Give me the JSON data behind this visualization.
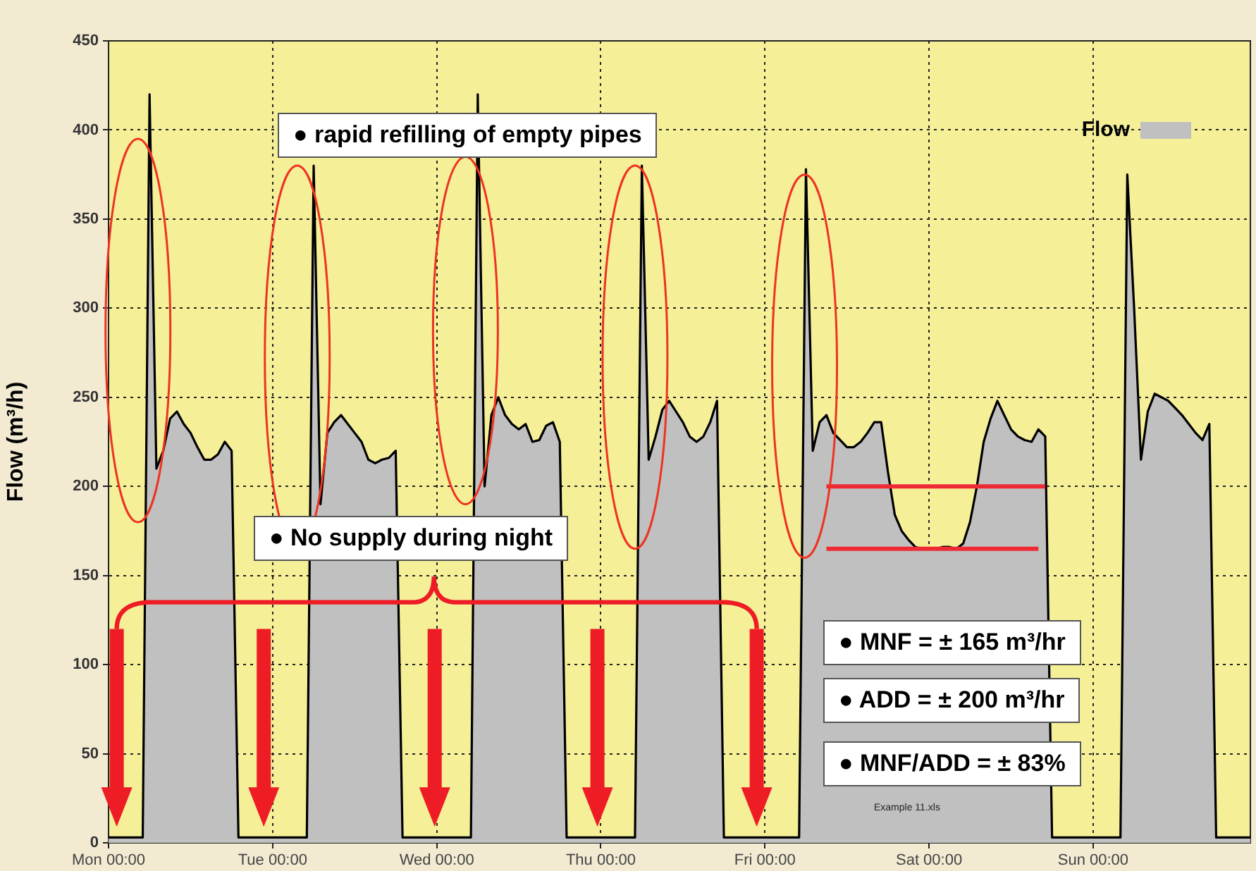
{
  "chart_data": {
    "type": "area",
    "ylabel": "Flow (m³/h)",
    "categories": [
      "Mon 00:00",
      null,
      null,
      null,
      null,
      null,
      null,
      null,
      null,
      null,
      null,
      null,
      null,
      null,
      null,
      null,
      null,
      null,
      null,
      null,
      null,
      null,
      null,
      null,
      "Tue 00:00",
      null,
      null,
      null,
      null,
      null,
      null,
      null,
      null,
      null,
      null,
      null,
      null,
      null,
      null,
      null,
      null,
      null,
      null,
      null,
      null,
      null,
      null,
      null,
      "Wed 00:00",
      null,
      null,
      null,
      null,
      null,
      null,
      null,
      null,
      null,
      null,
      null,
      null,
      null,
      null,
      null,
      null,
      null,
      null,
      null,
      null,
      null,
      null,
      null,
      "Thu 00:00",
      null,
      null,
      null,
      null,
      null,
      null,
      null,
      null,
      null,
      null,
      null,
      null,
      null,
      null,
      null,
      null,
      null,
      null,
      null,
      null,
      null,
      null,
      null,
      "Fri 00:00",
      null,
      null,
      null,
      null,
      null,
      null,
      null,
      null,
      null,
      null,
      null,
      null,
      null,
      null,
      null,
      null,
      null,
      null,
      null,
      null,
      null,
      null,
      null,
      "Sat 00:00",
      null,
      null,
      null,
      null,
      null,
      null,
      null,
      null,
      null,
      null,
      null,
      null,
      null,
      null,
      null,
      null,
      null,
      null,
      null,
      null,
      null,
      null,
      null,
      "Sun 00:00",
      null,
      null,
      null,
      null,
      null,
      null,
      null,
      null,
      null,
      null,
      null,
      null,
      null,
      null,
      null,
      null,
      null,
      null,
      null,
      null,
      null,
      null,
      null
    ],
    "ylim": [
      0,
      450
    ],
    "yticks": [
      0,
      50,
      100,
      150,
      200,
      250,
      300,
      350,
      400,
      450
    ],
    "grid": true,
    "legend": "top right",
    "marker": "none",
    "series": [
      {
        "name": "Flow",
        "color": "#c0c0c0",
        "values": [
          3,
          3,
          3,
          3,
          3,
          3,
          420,
          210,
          220,
          238,
          242,
          235,
          230,
          222,
          215,
          215,
          218,
          225,
          220,
          3,
          3,
          3,
          3,
          3,
          3,
          3,
          3,
          3,
          3,
          3,
          380,
          190,
          230,
          236,
          240,
          235,
          230,
          225,
          215,
          213,
          215,
          216,
          220,
          3,
          3,
          3,
          3,
          3,
          3,
          3,
          3,
          3,
          3,
          3,
          420,
          200,
          240,
          250,
          240,
          235,
          232,
          235,
          225,
          226,
          234,
          236,
          225,
          3,
          3,
          3,
          3,
          3,
          3,
          3,
          3,
          3,
          3,
          3,
          380,
          215,
          228,
          243,
          248,
          242,
          236,
          228,
          225,
          228,
          236,
          248,
          3,
          3,
          3,
          3,
          3,
          3,
          3,
          3,
          3,
          3,
          3,
          3,
          378,
          220,
          236,
          240,
          230,
          226,
          222,
          222,
          225,
          230,
          236,
          236,
          208,
          184,
          175,
          170,
          166,
          165,
          165,
          165,
          166,
          166,
          165,
          168,
          180,
          200,
          225,
          238,
          248,
          240,
          232,
          228,
          226,
          225,
          232,
          228,
          3,
          3,
          3,
          3,
          3,
          3,
          3,
          3,
          3,
          3,
          3,
          375,
          300,
          215,
          242,
          252,
          250,
          248,
          244,
          240,
          235,
          230,
          226,
          235,
          3,
          3,
          3,
          3,
          3,
          3
        ]
      },
      {
        "type": "line",
        "color": "#ee2a35",
        "values": [
          null,
          null,
          null,
          null,
          null,
          null,
          null,
          null,
          null,
          null,
          null,
          null,
          null,
          null,
          null,
          null,
          null,
          null,
          null,
          null,
          null,
          null,
          null,
          null,
          null,
          null,
          null,
          null,
          null,
          null,
          null,
          null,
          null,
          null,
          null,
          null,
          null,
          null,
          null,
          null,
          null,
          null,
          null,
          null,
          null,
          null,
          null,
          null,
          null,
          null,
          null,
          null,
          null,
          null,
          null,
          null,
          null,
          null,
          null,
          null,
          null,
          null,
          null,
          null,
          null,
          null,
          null,
          null,
          null,
          null,
          null,
          null,
          null,
          null,
          null,
          null,
          null,
          null,
          null,
          null,
          null,
          null,
          null,
          null,
          null,
          null,
          null,
          null,
          null,
          null,
          null,
          null,
          null,
          null,
          null,
          null,
          null,
          null,
          null,
          null,
          null,
          null,
          null,
          null,
          null,
          200,
          200,
          200,
          200,
          200,
          200,
          200,
          200,
          200,
          200,
          200,
          200,
          200,
          200,
          200,
          200,
          200,
          200,
          200,
          200,
          200,
          200,
          200,
          200,
          200,
          200,
          200,
          200,
          200,
          200,
          200,
          200,
          200,
          null,
          null,
          null,
          null,
          null,
          null,
          null,
          null,
          null,
          null,
          null,
          null,
          null,
          null,
          null,
          null,
          null,
          null,
          null,
          null,
          null,
          null,
          null,
          null,
          null,
          null,
          null,
          null,
          null,
          null
        ]
      },
      {
        "type": "line",
        "color": "#ee2a35",
        "values": [
          null,
          null,
          null,
          null,
          null,
          null,
          null,
          null,
          null,
          null,
          null,
          null,
          null,
          null,
          null,
          null,
          null,
          null,
          null,
          null,
          null,
          null,
          null,
          null,
          null,
          null,
          null,
          null,
          null,
          null,
          null,
          null,
          null,
          null,
          null,
          null,
          null,
          null,
          null,
          null,
          null,
          null,
          null,
          null,
          null,
          null,
          null,
          null,
          null,
          null,
          null,
          null,
          null,
          null,
          null,
          null,
          null,
          null,
          null,
          null,
          null,
          null,
          null,
          null,
          null,
          null,
          null,
          null,
          null,
          null,
          null,
          null,
          null,
          null,
          null,
          null,
          null,
          null,
          null,
          null,
          null,
          null,
          null,
          null,
          null,
          null,
          null,
          null,
          null,
          null,
          null,
          null,
          null,
          null,
          null,
          null,
          null,
          null,
          null,
          null,
          null,
          null,
          null,
          null,
          null,
          165,
          165,
          165,
          165,
          165,
          165,
          165,
          165,
          165,
          165,
          165,
          165,
          165,
          165,
          165,
          165,
          165,
          165,
          165,
          165,
          165,
          165,
          165,
          165,
          165,
          165,
          165,
          165,
          165,
          165,
          165,
          165,
          null,
          null,
          null,
          null,
          null,
          null,
          null,
          null,
          null,
          null,
          null,
          null,
          null,
          null,
          null,
          null,
          null,
          null,
          null,
          null,
          null,
          null,
          null,
          null,
          null,
          null,
          null,
          null,
          null,
          null,
          null
        ]
      }
    ],
    "annotations": [
      "● rapid refilling of empty pipes",
      "● No supply during night",
      "● MNF = ± 165 m³/hr",
      "● ADD = ± 200 m³/hr",
      "● MNF/ADD = ± 83%",
      "Example 11.xls"
    ]
  }
}
